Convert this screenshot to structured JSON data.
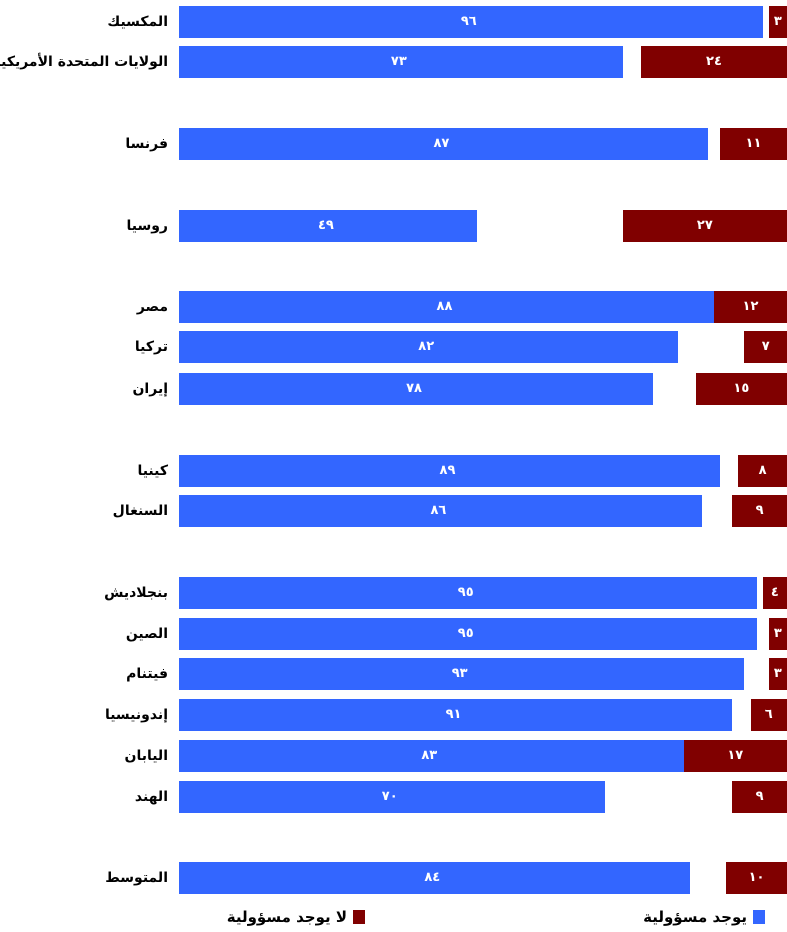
{
  "chart_data": {
    "type": "bar",
    "orientation": "horizontal-diverging",
    "legend": [
      {
        "key": "yes",
        "label": "يوجد مسؤولية",
        "color": "#3366ff"
      },
      {
        "key": "no",
        "label": "لا يوجد مسؤولية",
        "color": "#800000"
      }
    ],
    "legend_placement": "bottom",
    "rows": [
      {
        "name": "المكسيك",
        "yes": 96,
        "no": 3,
        "yes_label": "٩٦",
        "no_label": "٣"
      },
      {
        "name": "الولايات المتحدة الأمريكية",
        "yes": 73,
        "no": 24,
        "yes_label": "٧٣",
        "no_label": "٢٤"
      },
      {
        "name": "فرنسا",
        "yes": 87,
        "no": 11,
        "yes_label": "٨٧",
        "no_label": "١١"
      },
      {
        "name": "روسيا",
        "yes": 49,
        "no": 27,
        "yes_label": "٤٩",
        "no_label": "٢٧"
      },
      {
        "name": "مصر",
        "yes": 88,
        "no": 12,
        "yes_label": "٨٨",
        "no_label": "١٢"
      },
      {
        "name": "تركيا",
        "yes": 82,
        "no": 7,
        "yes_label": "٨٢",
        "no_label": "٧"
      },
      {
        "name": "إيران",
        "yes": 78,
        "no": 15,
        "yes_label": "٧٨",
        "no_label": "١٥"
      },
      {
        "name": "كينيا",
        "yes": 89,
        "no": 8,
        "yes_label": "٨٩",
        "no_label": "٨"
      },
      {
        "name": "السنغال",
        "yes": 86,
        "no": 9,
        "yes_label": "٨٦",
        "no_label": "٩"
      },
      {
        "name": "بنجلاديش",
        "yes": 95,
        "no": 4,
        "yes_label": "٩٥",
        "no_label": "٤"
      },
      {
        "name": "الصين",
        "yes": 95,
        "no": 3,
        "yes_label": "٩٥",
        "no_label": "٣"
      },
      {
        "name": "فيتنام",
        "yes": 93,
        "no": 3,
        "yes_label": "٩٣",
        "no_label": "٣"
      },
      {
        "name": "إندونيسيا",
        "yes": 91,
        "no": 6,
        "yes_label": "٩١",
        "no_label": "٦"
      },
      {
        "name": "اليابان",
        "yes": 83,
        "no": 17,
        "yes_label": "٨٣",
        "no_label": "١٧"
      },
      {
        "name": "الهند",
        "yes": 70,
        "no": 9,
        "yes_label": "٧٠",
        "no_label": "٩"
      },
      {
        "name": "المتوسط",
        "yes": 84,
        "no": 10,
        "yes_label": "٨٤",
        "no_label": "١٠"
      }
    ]
  }
}
